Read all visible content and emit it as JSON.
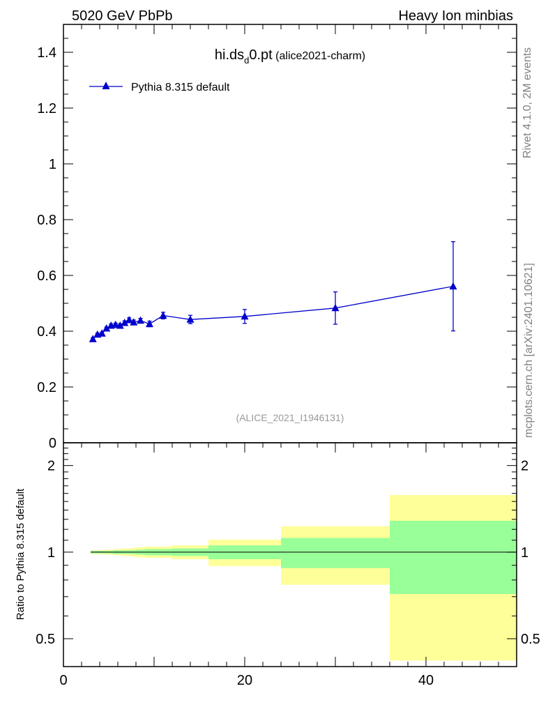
{
  "header": {
    "left": "5020 GeV PbPb",
    "right": "Heavy Ion minbias"
  },
  "side_labels": {
    "rivet": "Rivet 4.1.0,  2M events",
    "mcplots": "mcplots.cern.ch [arXiv:2401.10621]"
  },
  "colors": {
    "series": "#0000cc",
    "band_outer": "#ffff99",
    "band_inner": "#99ff99"
  },
  "chart_data": [
    {
      "type": "line",
      "title": "hi.ds",
      "title_sub": "d",
      "title_tail": "0.pt",
      "title_note": "(alice2021-charm)",
      "watermark": "(ALICE_2021_I1946131)",
      "ylim": [
        0,
        1.5
      ],
      "xlim": [
        0,
        50
      ],
      "yticks": [
        0,
        0.2,
        0.4,
        0.6,
        0.8,
        1,
        1.2,
        1.4
      ],
      "ytick_labels": [
        "0",
        "0.2",
        "0.4",
        "0.6",
        "0.8",
        "1",
        "1.2",
        "1.4"
      ],
      "series": [
        {
          "name": "Pythia 8.315 default",
          "x": [
            3.25,
            3.75,
            4.25,
            4.75,
            5.25,
            5.75,
            6.25,
            6.75,
            7.25,
            7.75,
            8.5,
            9.5,
            11,
            14,
            20,
            30,
            43
          ],
          "y": [
            0.372,
            0.388,
            0.392,
            0.41,
            0.42,
            0.423,
            0.42,
            0.43,
            0.44,
            0.432,
            0.438,
            0.426,
            0.456,
            0.442,
            0.453,
            0.483,
            0.561
          ],
          "yerr": [
            0.005,
            0.005,
            0.005,
            0.005,
            0.006,
            0.006,
            0.006,
            0.007,
            0.008,
            0.008,
            0.008,
            0.01,
            0.012,
            0.015,
            0.025,
            0.058,
            0.16
          ]
        }
      ]
    },
    {
      "type": "area",
      "ylabel": "Ratio to Pythia 8.315 default",
      "ylim": [
        0.4,
        2.4
      ],
      "yscale": "log",
      "xlim": [
        0,
        50
      ],
      "xticks": [
        0,
        20,
        40
      ],
      "xtick_labels": [
        "0",
        "20",
        "40"
      ],
      "yticks": [
        0.5,
        1,
        2
      ],
      "ytick_labels": [
        "0.5",
        "1",
        "2"
      ],
      "bins": [
        {
          "x0": 3,
          "x1": 3.5,
          "inner": [
            0.99,
            1.01
          ],
          "outer": [
            0.985,
            1.015
          ]
        },
        {
          "x0": 3.5,
          "x1": 4,
          "inner": [
            0.99,
            1.01
          ],
          "outer": [
            0.985,
            1.015
          ]
        },
        {
          "x0": 4,
          "x1": 4.5,
          "inner": [
            0.99,
            1.01
          ],
          "outer": [
            0.985,
            1.015
          ]
        },
        {
          "x0": 4.5,
          "x1": 5,
          "inner": [
            0.99,
            1.01
          ],
          "outer": [
            0.98,
            1.02
          ]
        },
        {
          "x0": 5,
          "x1": 5.5,
          "inner": [
            0.99,
            1.01
          ],
          "outer": [
            0.98,
            1.02
          ]
        },
        {
          "x0": 5.5,
          "x1": 6,
          "inner": [
            0.985,
            1.015
          ],
          "outer": [
            0.975,
            1.025
          ]
        },
        {
          "x0": 6,
          "x1": 6.5,
          "inner": [
            0.985,
            1.015
          ],
          "outer": [
            0.975,
            1.025
          ]
        },
        {
          "x0": 6.5,
          "x1": 7,
          "inner": [
            0.985,
            1.015
          ],
          "outer": [
            0.97,
            1.03
          ]
        },
        {
          "x0": 7,
          "x1": 7.5,
          "inner": [
            0.985,
            1.015
          ],
          "outer": [
            0.97,
            1.03
          ]
        },
        {
          "x0": 7.5,
          "x1": 8,
          "inner": [
            0.985,
            1.015
          ],
          "outer": [
            0.965,
            1.035
          ]
        },
        {
          "x0": 8,
          "x1": 9,
          "inner": [
            0.98,
            1.02
          ],
          "outer": [
            0.96,
            1.04
          ]
        },
        {
          "x0": 9,
          "x1": 12,
          "inner": [
            0.975,
            1.025
          ],
          "outer": [
            0.955,
            1.045
          ]
        },
        {
          "x0": 12,
          "x1": 16,
          "inner": [
            0.97,
            1.03
          ],
          "outer": [
            0.945,
            1.055
          ]
        },
        {
          "x0": 16,
          "x1": 24,
          "inner": [
            0.945,
            1.055
          ],
          "outer": [
            0.895,
            1.105
          ]
        },
        {
          "x0": 24,
          "x1": 36,
          "inner": [
            0.88,
            1.12
          ],
          "outer": [
            0.77,
            1.23
          ]
        },
        {
          "x0": 36,
          "x1": 50,
          "inner": [
            0.715,
            1.285
          ],
          "outer": [
            0.42,
            1.58
          ]
        }
      ]
    }
  ]
}
